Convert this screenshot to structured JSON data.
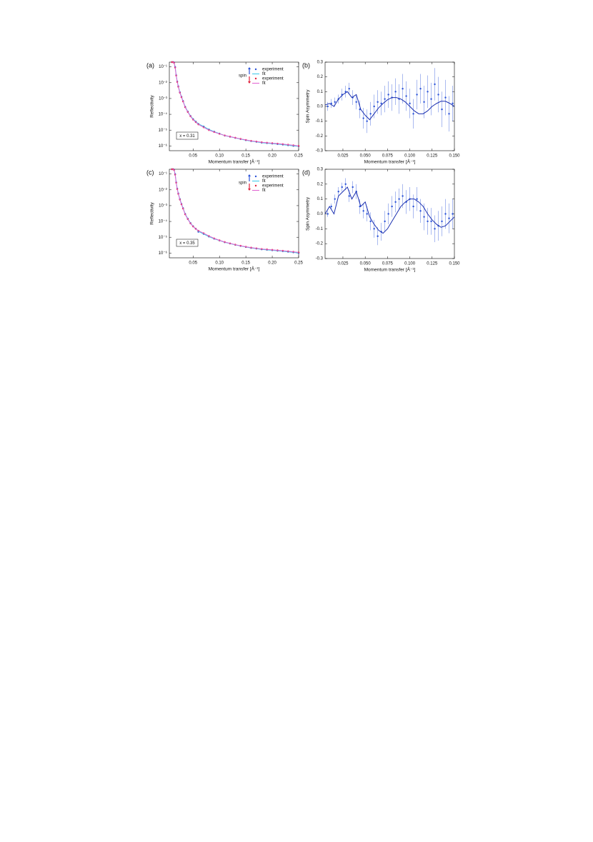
{
  "chart_data": [
    {
      "type": "scatter",
      "panel_label": "(a)",
      "x_label": "Momentum transfer [Å⁻¹]",
      "y_label": "Reflectivity",
      "log_y": true,
      "xlim": [
        0.005,
        0.25
      ],
      "ylim": [
        5e-07,
        0.2
      ],
      "xticks": [
        0.05,
        {
          "value": 0.1,
          "label": "0.10"
        },
        0.15,
        {
          "value": 0.2,
          "label": "0.20"
        },
        0.25
      ],
      "yticks": [
        {
          "value": 0.1,
          "label": "10⁻¹"
        },
        {
          "value": 0.01,
          "label": "10⁻²"
        },
        {
          "value": 0.001,
          "label": "10⁻³"
        },
        {
          "value": 0.0001,
          "label": "10⁻⁴"
        },
        {
          "value": 1e-05,
          "label": "10⁻⁵"
        },
        {
          "value": 1e-06,
          "label": "10⁻⁶"
        }
      ],
      "legend": true,
      "legend_title": "spin",
      "annotation": "x = 0.31",
      "x": [
        0.01,
        0.012,
        0.014,
        0.016,
        0.018,
        0.02,
        0.022,
        0.025,
        0.028,
        0.031,
        0.035,
        0.04,
        0.045,
        0.05,
        0.055,
        0.06,
        0.07,
        0.08,
        0.09,
        0.1,
        0.11,
        0.12,
        0.13,
        0.14,
        0.15,
        0.16,
        0.17,
        0.18,
        0.19,
        0.2,
        0.21,
        0.22,
        0.23,
        0.24,
        0.25
      ],
      "series": [
        {
          "name": "experiment",
          "color": "#2a52d8",
          "style": "markers",
          "values": [
            0.2,
            0.2,
            0.19,
            0.1,
            0.03,
            0.012,
            0.006,
            0.0025,
            0.0013,
            0.0007,
            0.0003,
            0.00015,
            8e-05,
            5e-05,
            3.5e-05,
            2.5e-05,
            1.7e-05,
            1.1e-05,
            8e-06,
            6e-06,
            4.5e-06,
            3.8e-06,
            3.2e-06,
            2.7e-06,
            2.3e-06,
            2e-06,
            1.8e-06,
            1.6e-06,
            1.5e-06,
            1.4e-06,
            1.3e-06,
            1.2e-06,
            1.1e-06,
            1e-06,
            9.5e-07
          ]
        },
        {
          "name": "fit",
          "color": "#35c8e8",
          "style": "line",
          "values": [
            0.2,
            0.2,
            0.19,
            0.1,
            0.03,
            0.012,
            0.006,
            0.0025,
            0.0013,
            0.0007,
            0.0003,
            0.00015,
            8e-05,
            5e-05,
            3.5e-05,
            2.5e-05,
            1.7e-05,
            1.1e-05,
            8e-06,
            6e-06,
            4.5e-06,
            3.8e-06,
            3.2e-06,
            2.7e-06,
            2.3e-06,
            2e-06,
            1.8e-06,
            1.6e-06,
            1.5e-06,
            1.4e-06,
            1.3e-06,
            1.2e-06,
            1.1e-06,
            1e-06,
            9.5e-07
          ]
        },
        {
          "name": "experiment",
          "color": "#e0203a",
          "style": "markers",
          "values": [
            0.2,
            0.2,
            0.18,
            0.09,
            0.028,
            0.011,
            0.0055,
            0.0023,
            0.0012,
            0.00065,
            0.00028,
            0.00014,
            7.5e-05,
            4.6e-05,
            3.2e-05,
            2.3e-05,
            1.5e-05,
            1e-05,
            7.5e-06,
            5.8e-06,
            4.6e-06,
            3.9e-06,
            3.3e-06,
            2.8e-06,
            2.4e-06,
            2.1e-06,
            1.9e-06,
            1.7e-06,
            1.6e-06,
            1.5e-06,
            1.4e-06,
            1.3e-06,
            1.2e-06,
            1.1e-06,
            1e-06
          ]
        },
        {
          "name": "fit",
          "color": "#e060d0",
          "style": "line",
          "values": [
            0.2,
            0.2,
            0.18,
            0.09,
            0.028,
            0.011,
            0.0055,
            0.0023,
            0.0012,
            0.00065,
            0.00028,
            0.00014,
            7.5e-05,
            4.6e-05,
            3.2e-05,
            2.3e-05,
            1.5e-05,
            1e-05,
            7.5e-06,
            5.8e-06,
            4.6e-06,
            3.9e-06,
            3.3e-06,
            2.8e-06,
            2.4e-06,
            2.1e-06,
            1.9e-06,
            1.7e-06,
            1.6e-06,
            1.5e-06,
            1.4e-06,
            1.3e-06,
            1.2e-06,
            1.1e-06,
            1e-06
          ]
        }
      ]
    },
    {
      "type": "scatter",
      "panel_label": "(b)",
      "x_label": "Momentum transfer [Å⁻¹]",
      "y_label": "Spin Asymmetry",
      "xlim": [
        0.005,
        0.15
      ],
      "ylim": [
        -0.3,
        0.3
      ],
      "xticks": [
        0.025,
        {
          "value": 0.05,
          "label": "0.050"
        },
        0.075,
        {
          "value": 0.1,
          "label": "0.100"
        },
        0.125,
        {
          "value": 0.15,
          "label": "0.150"
        }
      ],
      "yticks": [
        -0.3,
        -0.2,
        -0.1,
        {
          "value": 0,
          "label": "0.0"
        },
        0.1,
        0.2,
        0.3
      ],
      "series": [
        {
          "color": "#2a52d8",
          "style": "markers",
          "x": [
            0.008,
            0.012,
            0.016,
            0.02,
            0.024,
            0.028,
            0.032,
            0.036,
            0.04,
            0.044,
            0.048,
            0.052,
            0.056,
            0.06,
            0.064,
            0.068,
            0.072,
            0.076,
            0.08,
            0.084,
            0.088,
            0.092,
            0.096,
            0.1,
            0.104,
            0.108,
            0.112,
            0.116,
            0.12,
            0.124,
            0.128,
            0.132,
            0.136,
            0.14,
            0.144,
            0.148
          ],
          "values": [
            0.0,
            0.02,
            0.03,
            0.05,
            0.08,
            0.1,
            0.12,
            0.06,
            0.03,
            -0.02,
            -0.08,
            -0.1,
            -0.05,
            0.0,
            0.03,
            0.02,
            0.05,
            0.08,
            0.06,
            0.1,
            0.05,
            0.12,
            0.07,
            0.02,
            -0.05,
            0.08,
            0.12,
            0.03,
            0.1,
            0.05,
            0.15,
            0.08,
            -0.02,
            0.06,
            -0.05,
            0.02
          ],
          "errors": [
            0.03,
            0.03,
            0.03,
            0.03,
            0.04,
            0.04,
            0.04,
            0.05,
            0.05,
            0.06,
            0.07,
            0.08,
            0.08,
            0.08,
            0.08,
            0.08,
            0.09,
            0.09,
            0.09,
            0.09,
            0.1,
            0.1,
            0.1,
            0.1,
            0.1,
            0.1,
            0.1,
            0.11,
            0.11,
            0.11,
            0.11,
            0.12,
            0.12,
            0.12,
            0.12,
            0.12
          ]
        },
        {
          "color": "#1a2fb0",
          "style": "line",
          "x": [
            0.005,
            0.01,
            0.015,
            0.02,
            0.025,
            0.03,
            0.035,
            0.04,
            0.045,
            0.05,
            0.055,
            0.06,
            0.065,
            0.07,
            0.075,
            0.08,
            0.085,
            0.09,
            0.095,
            0.1,
            0.105,
            0.11,
            0.115,
            0.12,
            0.125,
            0.13,
            0.135,
            0.14,
            0.145,
            0.15
          ],
          "values": [
            0.01,
            0.02,
            0.0,
            0.05,
            0.08,
            0.1,
            0.06,
            0.08,
            -0.02,
            -0.06,
            -0.09,
            -0.05,
            -0.01,
            0.02,
            0.045,
            0.06,
            0.06,
            0.05,
            0.03,
            0.0,
            -0.03,
            -0.05,
            -0.05,
            -0.03,
            0.0,
            0.02,
            0.035,
            0.035,
            0.02,
            0.0
          ]
        }
      ]
    },
    {
      "type": "scatter",
      "panel_label": "(c)",
      "x_label": "Momentum transfer [Å⁻¹]",
      "y_label": "Reflectivity",
      "log_y": true,
      "xlim": [
        0.005,
        0.25
      ],
      "ylim": [
        5e-07,
        0.2
      ],
      "xticks": [
        0.05,
        {
          "value": 0.1,
          "label": "0.10"
        },
        0.15,
        {
          "value": 0.2,
          "label": "0.20"
        },
        0.25
      ],
      "yticks": [
        {
          "value": 0.1,
          "label": "10⁻¹"
        },
        {
          "value": 0.01,
          "label": "10⁻²"
        },
        {
          "value": 0.001,
          "label": "10⁻³"
        },
        {
          "value": 0.0001,
          "label": "10⁻⁴"
        },
        {
          "value": 1e-05,
          "label": "10⁻⁵"
        },
        {
          "value": 1e-06,
          "label": "10⁻⁶"
        }
      ],
      "legend": true,
      "legend_title": "spin",
      "annotation": "x = 0.35",
      "x": [
        0.01,
        0.012,
        0.014,
        0.016,
        0.018,
        0.02,
        0.022,
        0.025,
        0.028,
        0.031,
        0.035,
        0.04,
        0.045,
        0.05,
        0.055,
        0.06,
        0.07,
        0.08,
        0.09,
        0.1,
        0.11,
        0.12,
        0.13,
        0.14,
        0.15,
        0.16,
        0.17,
        0.18,
        0.19,
        0.2,
        0.21,
        0.22,
        0.23,
        0.24,
        0.25
      ],
      "series": [
        {
          "name": "experiment",
          "color": "#2a52d8",
          "style": "markers",
          "values": [
            0.2,
            0.2,
            0.19,
            0.1,
            0.03,
            0.012,
            0.006,
            0.0026,
            0.0013,
            0.0007,
            0.0003,
            0.00015,
            8e-05,
            5e-05,
            3.5e-05,
            2.2e-05,
            1.6e-05,
            1.1e-05,
            8e-06,
            6.2e-06,
            4.8e-06,
            4e-06,
            3.3e-06,
            2.8e-06,
            2.4e-06,
            2.1e-06,
            1.9e-06,
            1.7e-06,
            1.6e-06,
            1.5e-06,
            1.4e-06,
            1.3e-06,
            1.2e-06,
            1.1e-06,
            1e-06
          ]
        },
        {
          "name": "fit",
          "color": "#35c8e8",
          "style": "line",
          "values": [
            0.2,
            0.2,
            0.19,
            0.1,
            0.03,
            0.012,
            0.006,
            0.0026,
            0.0013,
            0.0007,
            0.0003,
            0.00015,
            8e-05,
            5e-05,
            3.5e-05,
            2.4e-05,
            1.6e-05,
            1.1e-05,
            8e-06,
            6.2e-06,
            4.8e-06,
            4e-06,
            3.3e-06,
            2.8e-06,
            2.4e-06,
            2.1e-06,
            1.9e-06,
            1.7e-06,
            1.6e-06,
            1.5e-06,
            1.4e-06,
            1.3e-06,
            1.2e-06,
            1.1e-06,
            1e-06
          ]
        },
        {
          "name": "experiment",
          "color": "#e0203a",
          "style": "markers",
          "values": [
            0.2,
            0.2,
            0.18,
            0.09,
            0.028,
            0.011,
            0.0055,
            0.0024,
            0.0012,
            0.00065,
            0.00028,
            0.00014,
            7.5e-05,
            4.8e-05,
            3.4e-05,
            2.6e-05,
            1.8e-05,
            1.2e-05,
            8.5e-06,
            6.4e-06,
            5e-06,
            4.1e-06,
            3.4e-06,
            2.9e-06,
            2.5e-06,
            2.2e-06,
            2e-06,
            1.8e-06,
            1.7e-06,
            1.6e-06,
            1.5e-06,
            1.4e-06,
            1.3e-06,
            1.2e-06,
            1.1e-06
          ]
        },
        {
          "name": "fit",
          "color": "#e060d0",
          "style": "line",
          "values": [
            0.2,
            0.2,
            0.18,
            0.09,
            0.028,
            0.011,
            0.0055,
            0.0024,
            0.0012,
            0.00065,
            0.00028,
            0.00014,
            7.5e-05,
            4.8e-05,
            3.4e-05,
            2.6e-05,
            1.8e-05,
            1.2e-05,
            8.5e-06,
            6.4e-06,
            5e-06,
            4.1e-06,
            3.4e-06,
            2.9e-06,
            2.5e-06,
            2.2e-06,
            2e-06,
            1.8e-06,
            1.7e-06,
            1.6e-06,
            1.5e-06,
            1.4e-06,
            1.3e-06,
            1.2e-06,
            1.1e-06
          ]
        }
      ]
    },
    {
      "type": "scatter",
      "panel_label": "(d)",
      "x_label": "Momentum transfer [Å⁻¹]",
      "y_label": "Spin Asymmetry",
      "xlim": [
        0.005,
        0.15
      ],
      "ylim": [
        -0.3,
        0.3
      ],
      "xticks": [
        0.025,
        {
          "value": 0.05,
          "label": "0.050"
        },
        0.075,
        {
          "value": 0.1,
          "label": "0.100"
        },
        0.125,
        {
          "value": 0.15,
          "label": "0.150"
        }
      ],
      "yticks": [
        -0.3,
        -0.2,
        -0.1,
        {
          "value": 0,
          "label": "0.0"
        },
        0.1,
        0.2,
        0.3
      ],
      "series": [
        {
          "color": "#2a52d8",
          "style": "markers",
          "x": [
            0.008,
            0.012,
            0.016,
            0.02,
            0.024,
            0.028,
            0.032,
            0.036,
            0.04,
            0.044,
            0.048,
            0.052,
            0.056,
            0.06,
            0.064,
            0.068,
            0.072,
            0.076,
            0.08,
            0.084,
            0.088,
            0.092,
            0.096,
            0.1,
            0.104,
            0.108,
            0.112,
            0.116,
            0.12,
            0.124,
            0.128,
            0.132,
            0.136,
            0.14,
            0.144,
            0.148
          ],
          "values": [
            0.0,
            0.05,
            0.1,
            0.15,
            0.18,
            0.2,
            0.12,
            0.18,
            0.15,
            0.05,
            0.02,
            0.0,
            -0.05,
            -0.1,
            -0.15,
            -0.12,
            -0.05,
            0.0,
            0.05,
            0.08,
            0.1,
            0.12,
            0.08,
            0.1,
            0.05,
            0.1,
            0.02,
            -0.02,
            -0.05,
            -0.05,
            -0.1,
            -0.08,
            -0.05,
            0.0,
            -0.03,
            0.0
          ],
          "errors": [
            0.02,
            0.02,
            0.03,
            0.03,
            0.03,
            0.04,
            0.04,
            0.04,
            0.05,
            0.05,
            0.05,
            0.05,
            0.06,
            0.06,
            0.06,
            0.06,
            0.07,
            0.07,
            0.07,
            0.07,
            0.07,
            0.08,
            0.08,
            0.08,
            0.08,
            0.08,
            0.08,
            0.09,
            0.09,
            0.09,
            0.09,
            0.1,
            0.1,
            0.1,
            0.1,
            0.1
          ]
        },
        {
          "color": "#1a2fb0",
          "style": "line",
          "x": [
            0.005,
            0.01,
            0.015,
            0.02,
            0.025,
            0.03,
            0.035,
            0.04,
            0.045,
            0.05,
            0.055,
            0.06,
            0.065,
            0.07,
            0.075,
            0.08,
            0.085,
            0.09,
            0.095,
            0.1,
            0.105,
            0.11,
            0.115,
            0.12,
            0.125,
            0.13,
            0.135,
            0.14,
            0.145,
            0.15
          ],
          "values": [
            0.0,
            0.05,
            0.0,
            0.12,
            0.15,
            0.18,
            0.1,
            0.15,
            0.05,
            0.08,
            -0.02,
            -0.07,
            -0.11,
            -0.13,
            -0.1,
            -0.05,
            0.0,
            0.05,
            0.08,
            0.1,
            0.1,
            0.08,
            0.05,
            0.0,
            -0.04,
            -0.07,
            -0.09,
            -0.08,
            -0.05,
            -0.02
          ]
        }
      ]
    }
  ]
}
